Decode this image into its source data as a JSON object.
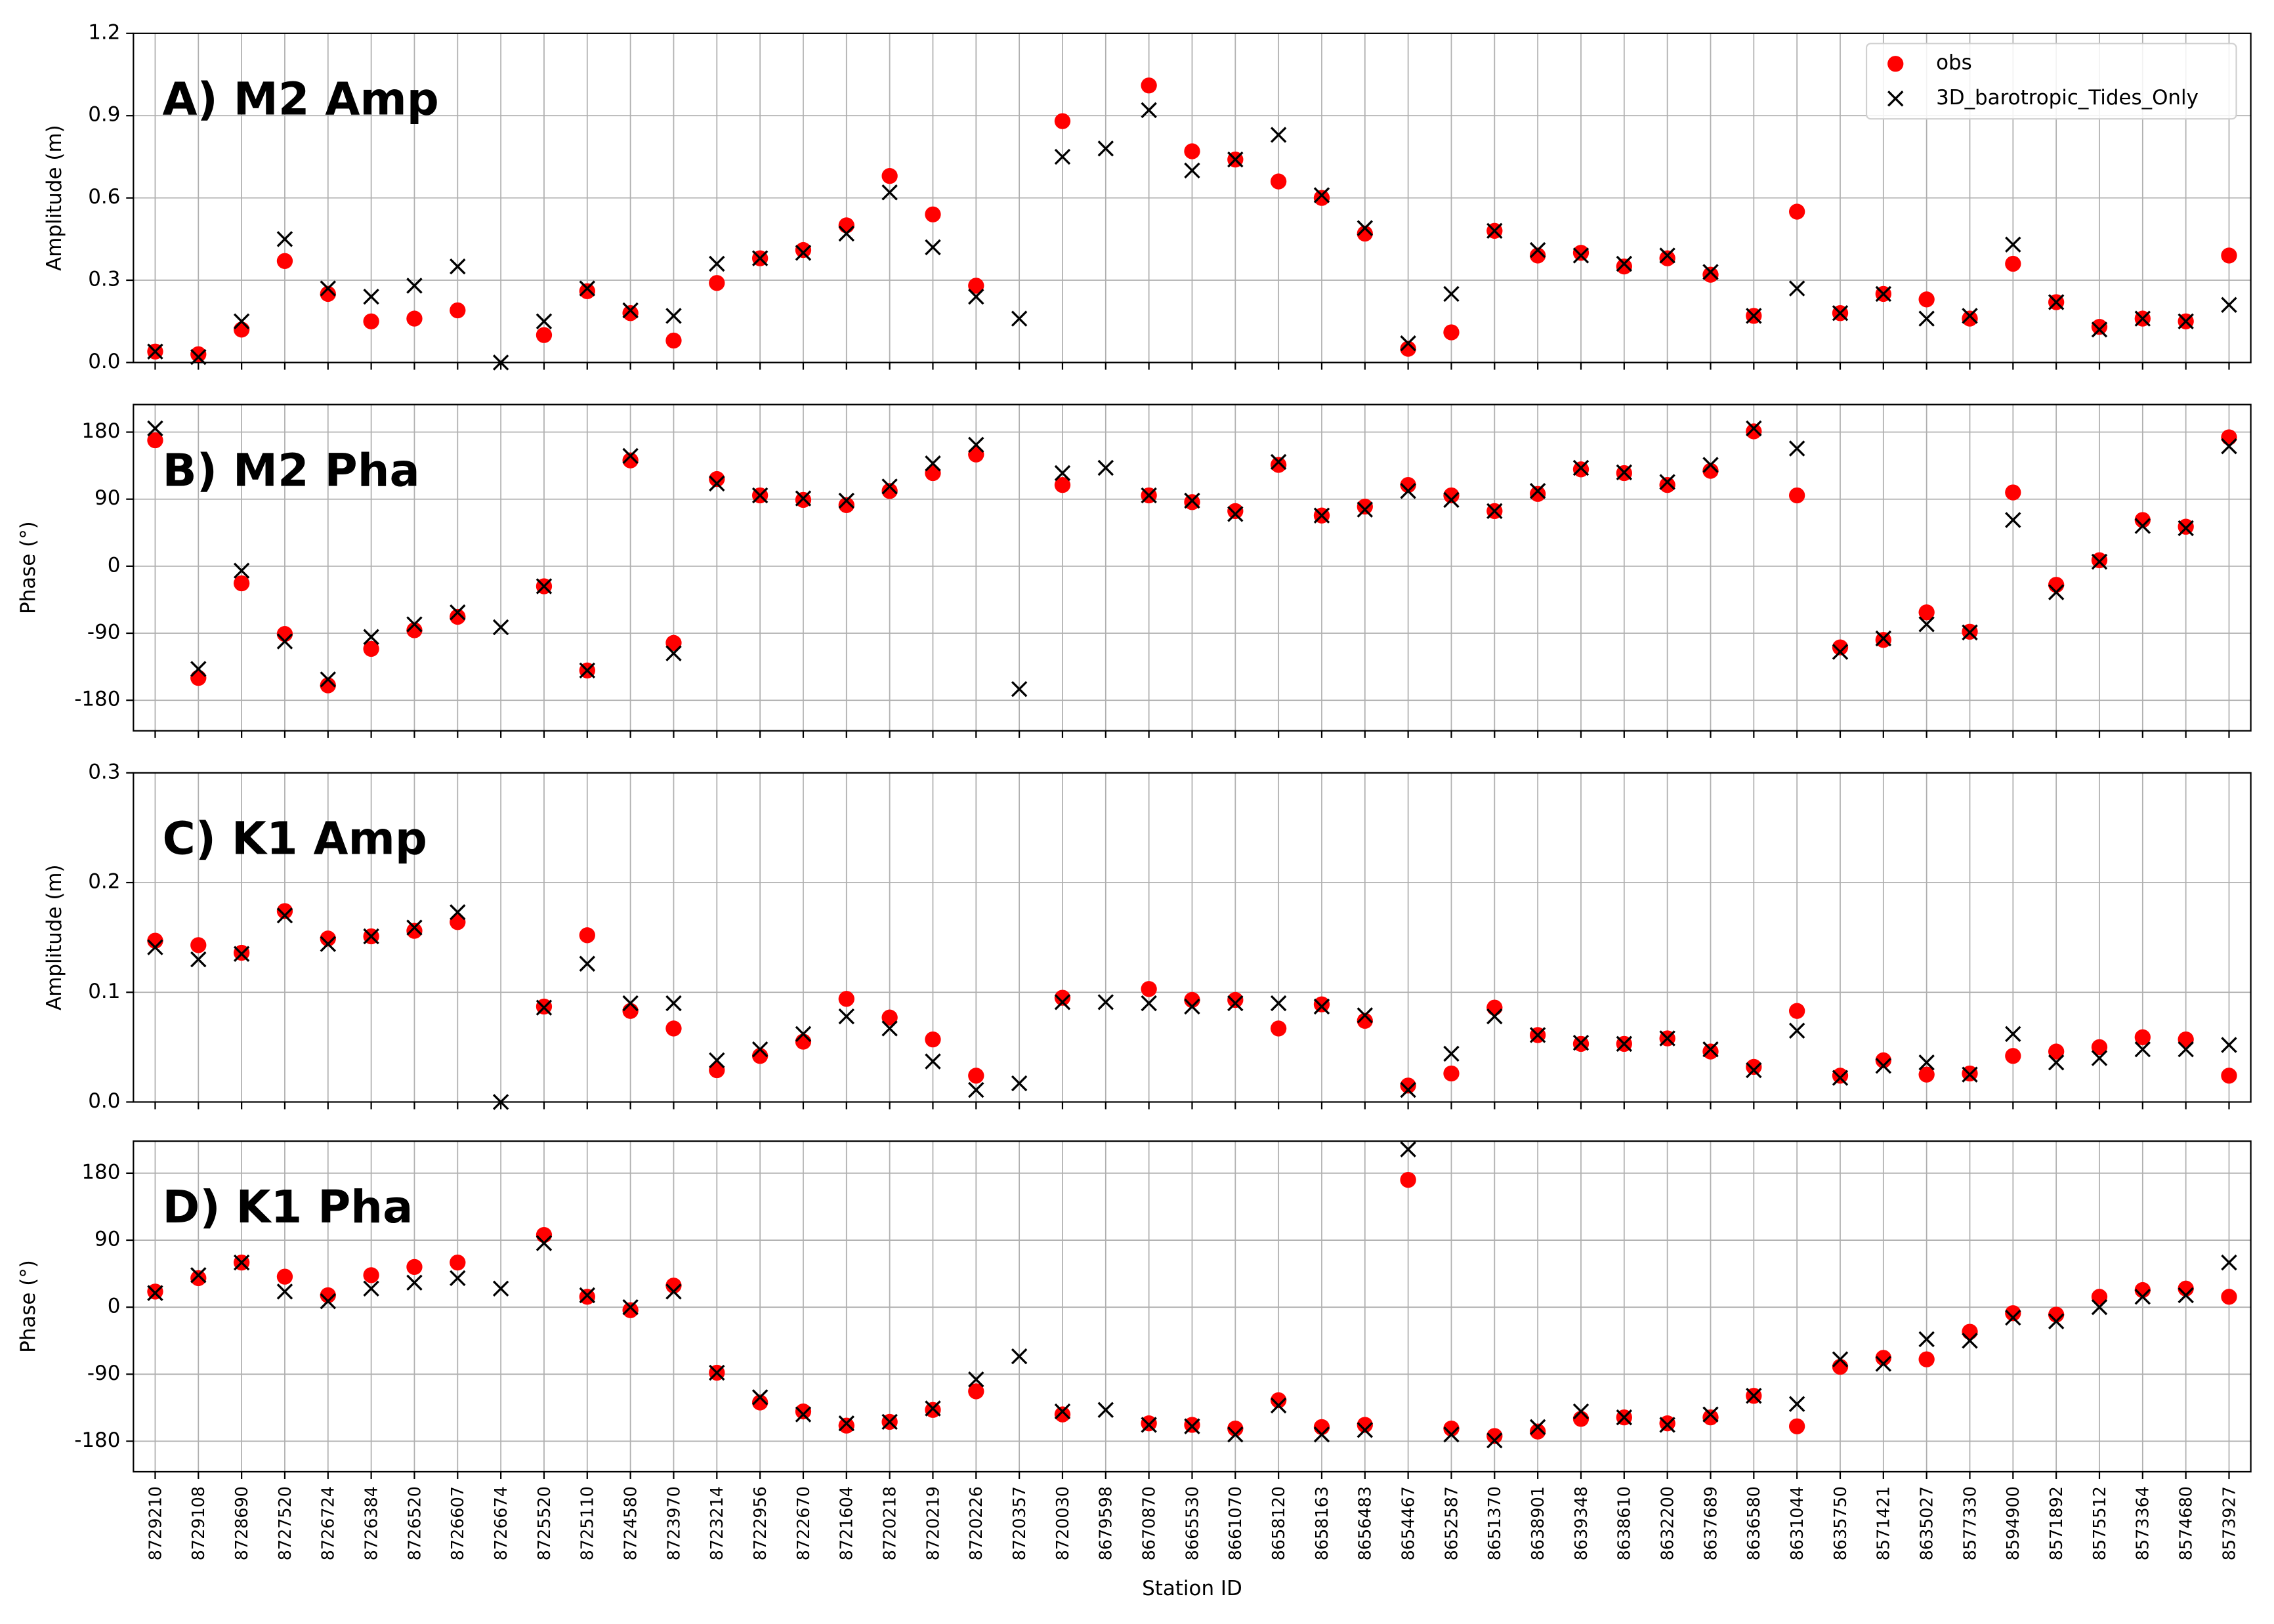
{
  "chart_data": [
    {
      "type": "scatter",
      "title": "A) M2 Amp",
      "y_label": "Amplitude (m)",
      "ylim": [
        0,
        1.2
      ],
      "yticks": [
        {
          "value": 0,
          "label": "0.0"
        },
        0.3,
        0.6,
        0.9,
        1.2
      ],
      "grid": true,
      "legend": "upper right",
      "series": [
        {
          "name": "obs",
          "color": "red",
          "marker": "o",
          "values": [
            0.04,
            0.03,
            0.12,
            0.37,
            0.25,
            0.15,
            0.16,
            0.19,
            null,
            0.1,
            0.26,
            0.18,
            0.08,
            0.29,
            0.38,
            0.41,
            0.5,
            0.68,
            0.54,
            0.28,
            null,
            0.88,
            null,
            1.01,
            0.77,
            0.74,
            0.66,
            0.6,
            0.47,
            0.05,
            0.11,
            0.48,
            0.39,
            0.4,
            0.35,
            0.38,
            0.32,
            0.17,
            0.55,
            0.18,
            0.25,
            0.23,
            0.16,
            0.36,
            0.22,
            0.13,
            0.16,
            0.15,
            0.39
          ]
        },
        {
          "name": "3D_barotropic_Tides_Only",
          "color": "black",
          "marker": "x",
          "values": [
            0.04,
            0.02,
            0.15,
            0.45,
            0.27,
            0.24,
            0.28,
            0.35,
            0.0,
            0.15,
            0.27,
            0.19,
            0.17,
            0.36,
            0.38,
            0.4,
            0.47,
            0.62,
            0.42,
            0.24,
            0.16,
            0.75,
            0.78,
            0.92,
            0.7,
            0.74,
            0.83,
            0.61,
            0.49,
            0.07,
            0.25,
            0.48,
            0.41,
            0.39,
            0.36,
            0.39,
            0.33,
            0.17,
            0.27,
            0.18,
            0.25,
            0.16,
            0.17,
            0.43,
            0.22,
            0.12,
            0.16,
            0.15,
            0.21
          ]
        }
      ]
    },
    {
      "type": "scatter",
      "title": "B) M2 Pha",
      "y_label": "Phase (°)",
      "ylim": [
        -221,
        217
      ],
      "yticks": [
        -180,
        -90,
        0,
        90,
        180
      ],
      "grid": true,
      "series": [
        {
          "color": "red",
          "marker": "o",
          "values": [
            169,
            -150,
            -23,
            -91,
            -160,
            -111,
            -86,
            -68,
            null,
            -27,
            -140,
            142,
            -103,
            117,
            95,
            89,
            82,
            101,
            125,
            150,
            null,
            109,
            null,
            95,
            86,
            74,
            136,
            68,
            80,
            109,
            95,
            74,
            97,
            130,
            125,
            109,
            128,
            181,
            95,
            -109,
            -99,
            -62,
            -88,
            99,
            -25,
            8,
            62,
            53,
            173
          ]
        },
        {
          "color": "black",
          "marker": "x",
          "values": [
            185,
            -138,
            -6,
            -101,
            -152,
            -95,
            -78,
            -62,
            -82,
            -27,
            -140,
            148,
            -117,
            111,
            95,
            91,
            88,
            107,
            138,
            163,
            -165,
            125,
            132,
            95,
            88,
            70,
            140,
            68,
            76,
            101,
            89,
            74,
            101,
            132,
            126,
            113,
            136,
            185,
            158,
            -115,
            -97,
            -78,
            -89,
            62,
            -35,
            6,
            54,
            51,
            161
          ]
        }
      ]
    },
    {
      "type": "scatter",
      "title": "C) K1 Amp",
      "y_label": "Amplitude (m)",
      "ylim": [
        0,
        0.3
      ],
      "yticks": [
        {
          "value": 0,
          "label": "0.0"
        },
        0.1,
        0.2,
        0.3
      ],
      "grid": true,
      "series": [
        {
          "color": "red",
          "marker": "o",
          "values": [
            0.147,
            0.143,
            0.136,
            0.174,
            0.149,
            0.151,
            0.156,
            0.164,
            null,
            0.087,
            0.152,
            0.083,
            0.067,
            0.029,
            0.042,
            0.055,
            0.094,
            0.077,
            0.057,
            0.024,
            null,
            0.095,
            null,
            0.103,
            0.093,
            0.093,
            0.067,
            0.089,
            0.074,
            0.015,
            0.026,
            0.086,
            0.061,
            0.053,
            0.053,
            0.058,
            0.046,
            0.032,
            0.083,
            0.024,
            0.038,
            0.025,
            0.026,
            0.042,
            0.046,
            0.05,
            0.059,
            0.057,
            0.024
          ]
        },
        {
          "color": "black",
          "marker": "x",
          "values": [
            0.141,
            0.13,
            0.135,
            0.17,
            0.144,
            0.151,
            0.159,
            0.173,
            0.0,
            0.086,
            0.126,
            0.09,
            0.09,
            0.038,
            0.048,
            0.062,
            0.078,
            0.067,
            0.037,
            0.011,
            0.017,
            0.091,
            0.091,
            0.09,
            0.087,
            0.09,
            0.09,
            0.087,
            0.079,
            0.011,
            0.044,
            0.078,
            0.061,
            0.054,
            0.053,
            0.058,
            0.048,
            0.029,
            0.065,
            0.022,
            0.033,
            0.036,
            0.025,
            0.062,
            0.036,
            0.04,
            0.048,
            0.048,
            0.052
          ]
        }
      ]
    },
    {
      "type": "scatter",
      "title": "D) K1 Pha",
      "y_label": "Phase (°)",
      "x_label": "Station ID",
      "ylim": [
        -221,
        223
      ],
      "yticks": [
        -180,
        -90,
        0,
        90,
        180
      ],
      "grid": true,
      "categories": [
        "8729210",
        "8729108",
        "8728690",
        "8727520",
        "8726724",
        "8726384",
        "8726520",
        "8726607",
        "8726674",
        "8725520",
        "8725110",
        "8724580",
        "8723970",
        "8723214",
        "8722956",
        "8722670",
        "8721604",
        "8720218",
        "8720219",
        "8720226",
        "8720357",
        "8720030",
        "8679598",
        "8670870",
        "8665530",
        "8661070",
        "8658120",
        "8658163",
        "8656483",
        "8654467",
        "8652587",
        "8651370",
        "8638901",
        "8639348",
        "8638610",
        "8632200",
        "8637689",
        "8636580",
        "8631044",
        "8635750",
        "8571421",
        "8635027",
        "8577330",
        "8594900",
        "8571892",
        "8575512",
        "8573364",
        "8574680",
        "8573927"
      ],
      "series": [
        {
          "color": "red",
          "marker": "o",
          "values": [
            21,
            39,
            60,
            41,
            16,
            43,
            54,
            60,
            null,
            97,
            14,
            -4,
            29,
            -88,
            -128,
            -140,
            -159,
            -154,
            -138,
            -113,
            null,
            -144,
            null,
            -156,
            -158,
            -163,
            -125,
            -161,
            -158,
            171,
            -163,
            -173,
            -167,
            -150,
            -148,
            -156,
            -148,
            -119,
            -160,
            -80,
            -68,
            -70,
            -33,
            -8,
            -10,
            14,
            23,
            25,
            14
          ]
        },
        {
          "color": "black",
          "marker": "x",
          "values": [
            19,
            43,
            60,
            21,
            8,
            25,
            33,
            39,
            25,
            86,
            16,
            0,
            21,
            -88,
            -121,
            -144,
            -156,
            -154,
            -136,
            -97,
            -66,
            -140,
            -138,
            -158,
            -160,
            -171,
            -132,
            -171,
            -165,
            212,
            -171,
            -179,
            -161,
            -140,
            -148,
            -158,
            -144,
            -119,
            -130,
            -70,
            -76,
            -43,
            -45,
            -14,
            -19,
            0,
            14,
            16,
            60
          ]
        }
      ]
    }
  ]
}
